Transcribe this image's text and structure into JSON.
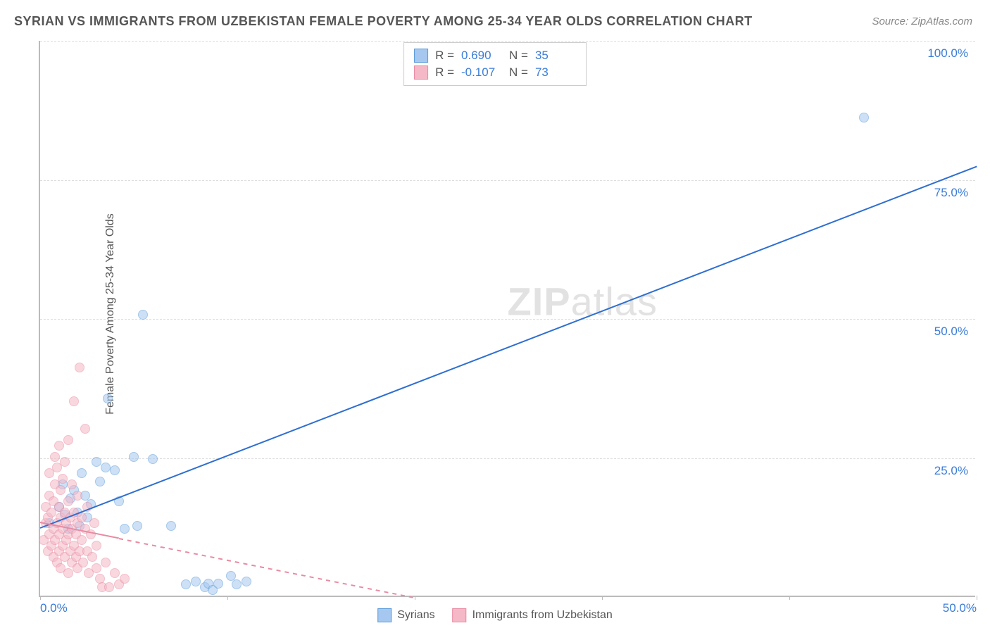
{
  "title": "SYRIAN VS IMMIGRANTS FROM UZBEKISTAN FEMALE POVERTY AMONG 25-34 YEAR OLDS CORRELATION CHART",
  "source": "Source: ZipAtlas.com",
  "ylabel": "Female Poverty Among 25-34 Year Olds",
  "watermark_b": "ZIP",
  "watermark_l": "atlas",
  "chart": {
    "type": "scatter",
    "xlim": [
      0,
      50
    ],
    "ylim": [
      0,
      100
    ],
    "xtick_positions": [
      0,
      10,
      20,
      30,
      40,
      50
    ],
    "xtick_labels": [
      "0.0%",
      "",
      "",
      "",
      "",
      "50.0%"
    ],
    "ytick_positions": [
      25,
      50,
      75,
      100
    ],
    "ytick_labels": [
      "25.0%",
      "50.0%",
      "75.0%",
      "100.0%"
    ],
    "background_color": "#ffffff",
    "grid_color": "#dddddd",
    "axis_color": "#bbbbbb",
    "tick_label_color": "#3b7dd8",
    "tick_fontsize": 17,
    "title_fontsize": 18,
    "title_color": "#555555",
    "ylabel_fontsize": 16,
    "marker_size": 14,
    "marker_opacity": 0.55
  },
  "series": [
    {
      "name": "Syrians",
      "fill_color": "#a6c8f0",
      "stroke_color": "#5a9bd8",
      "trend": {
        "x1": 0,
        "y1": 12.5,
        "x2": 50,
        "y2": 77.5,
        "color": "#2e6fd0",
        "width": 2,
        "dash": false
      },
      "legend_R": "0.690",
      "legend_N": "35",
      "points": [
        [
          0.5,
          13
        ],
        [
          1.0,
          16
        ],
        [
          1.2,
          20
        ],
        [
          1.3,
          14.5
        ],
        [
          1.5,
          12
        ],
        [
          1.6,
          17.5
        ],
        [
          1.8,
          19
        ],
        [
          2.0,
          15
        ],
        [
          2.1,
          12.5
        ],
        [
          2.2,
          22
        ],
        [
          2.4,
          18
        ],
        [
          2.5,
          14
        ],
        [
          2.7,
          16.5
        ],
        [
          3.0,
          24
        ],
        [
          3.2,
          20.5
        ],
        [
          3.5,
          23
        ],
        [
          3.6,
          35.5
        ],
        [
          4.0,
          22.5
        ],
        [
          4.2,
          17
        ],
        [
          4.5,
          12
        ],
        [
          5.0,
          25
        ],
        [
          5.2,
          12.5
        ],
        [
          5.5,
          50.5
        ],
        [
          6.0,
          24.5
        ],
        [
          7.0,
          12.5
        ],
        [
          7.8,
          2
        ],
        [
          8.3,
          2.5
        ],
        [
          8.8,
          1.5
        ],
        [
          9.0,
          2.2
        ],
        [
          9.2,
          1
        ],
        [
          9.5,
          2.2
        ],
        [
          10.2,
          3.5
        ],
        [
          10.5,
          2
        ],
        [
          11.0,
          2.5
        ],
        [
          44.0,
          86.0
        ]
      ]
    },
    {
      "name": "Immigrants from Uzbekistan",
      "fill_color": "#f5b8c6",
      "stroke_color": "#e88ba3",
      "trend": {
        "x1": 0,
        "y1": 13.5,
        "x2": 20,
        "y2": 0,
        "color": "#e88ba3",
        "width": 2,
        "dash": true,
        "solid_until_x": 4.2
      },
      "legend_R": "-0.107",
      "legend_N": "73",
      "points": [
        [
          0.2,
          10
        ],
        [
          0.3,
          13
        ],
        [
          0.3,
          16
        ],
        [
          0.4,
          8
        ],
        [
          0.4,
          14
        ],
        [
          0.5,
          11
        ],
        [
          0.5,
          18
        ],
        [
          0.5,
          22
        ],
        [
          0.6,
          9
        ],
        [
          0.6,
          15
        ],
        [
          0.7,
          7
        ],
        [
          0.7,
          12
        ],
        [
          0.7,
          17
        ],
        [
          0.8,
          10
        ],
        [
          0.8,
          20
        ],
        [
          0.8,
          25
        ],
        [
          0.9,
          6
        ],
        [
          0.9,
          13
        ],
        [
          0.9,
          23
        ],
        [
          1.0,
          8
        ],
        [
          1.0,
          11
        ],
        [
          1.0,
          16
        ],
        [
          1.0,
          27
        ],
        [
          1.1,
          5
        ],
        [
          1.1,
          14
        ],
        [
          1.1,
          19
        ],
        [
          1.2,
          9
        ],
        [
          1.2,
          12
        ],
        [
          1.2,
          21
        ],
        [
          1.3,
          7
        ],
        [
          1.3,
          15
        ],
        [
          1.3,
          24
        ],
        [
          1.4,
          10
        ],
        [
          1.4,
          13
        ],
        [
          1.5,
          4
        ],
        [
          1.5,
          11
        ],
        [
          1.5,
          17
        ],
        [
          1.5,
          28
        ],
        [
          1.6,
          8
        ],
        [
          1.6,
          14
        ],
        [
          1.7,
          6
        ],
        [
          1.7,
          12
        ],
        [
          1.7,
          20
        ],
        [
          1.8,
          9
        ],
        [
          1.8,
          15
        ],
        [
          1.8,
          35
        ],
        [
          1.9,
          7
        ],
        [
          1.9,
          11
        ],
        [
          2.0,
          5
        ],
        [
          2.0,
          13
        ],
        [
          2.0,
          18
        ],
        [
          2.1,
          8
        ],
        [
          2.1,
          41
        ],
        [
          2.2,
          10
        ],
        [
          2.2,
          14
        ],
        [
          2.3,
          6
        ],
        [
          2.4,
          12
        ],
        [
          2.4,
          30
        ],
        [
          2.5,
          8
        ],
        [
          2.5,
          16
        ],
        [
          2.6,
          4
        ],
        [
          2.7,
          11
        ],
        [
          2.8,
          7
        ],
        [
          2.9,
          13
        ],
        [
          3.0,
          5
        ],
        [
          3.0,
          9
        ],
        [
          3.2,
          3
        ],
        [
          3.3,
          1.5
        ],
        [
          3.5,
          6
        ],
        [
          3.7,
          1.5
        ],
        [
          4.0,
          4
        ],
        [
          4.2,
          2
        ],
        [
          4.5,
          3
        ]
      ]
    }
  ],
  "legend_top": {
    "R_label": "R =",
    "N_label": "N =",
    "border_color": "#cccccc",
    "value_color": "#3b7dd8",
    "label_color": "#555555"
  },
  "legend_bottom": {
    "text_color": "#555555",
    "fontsize": 16
  }
}
